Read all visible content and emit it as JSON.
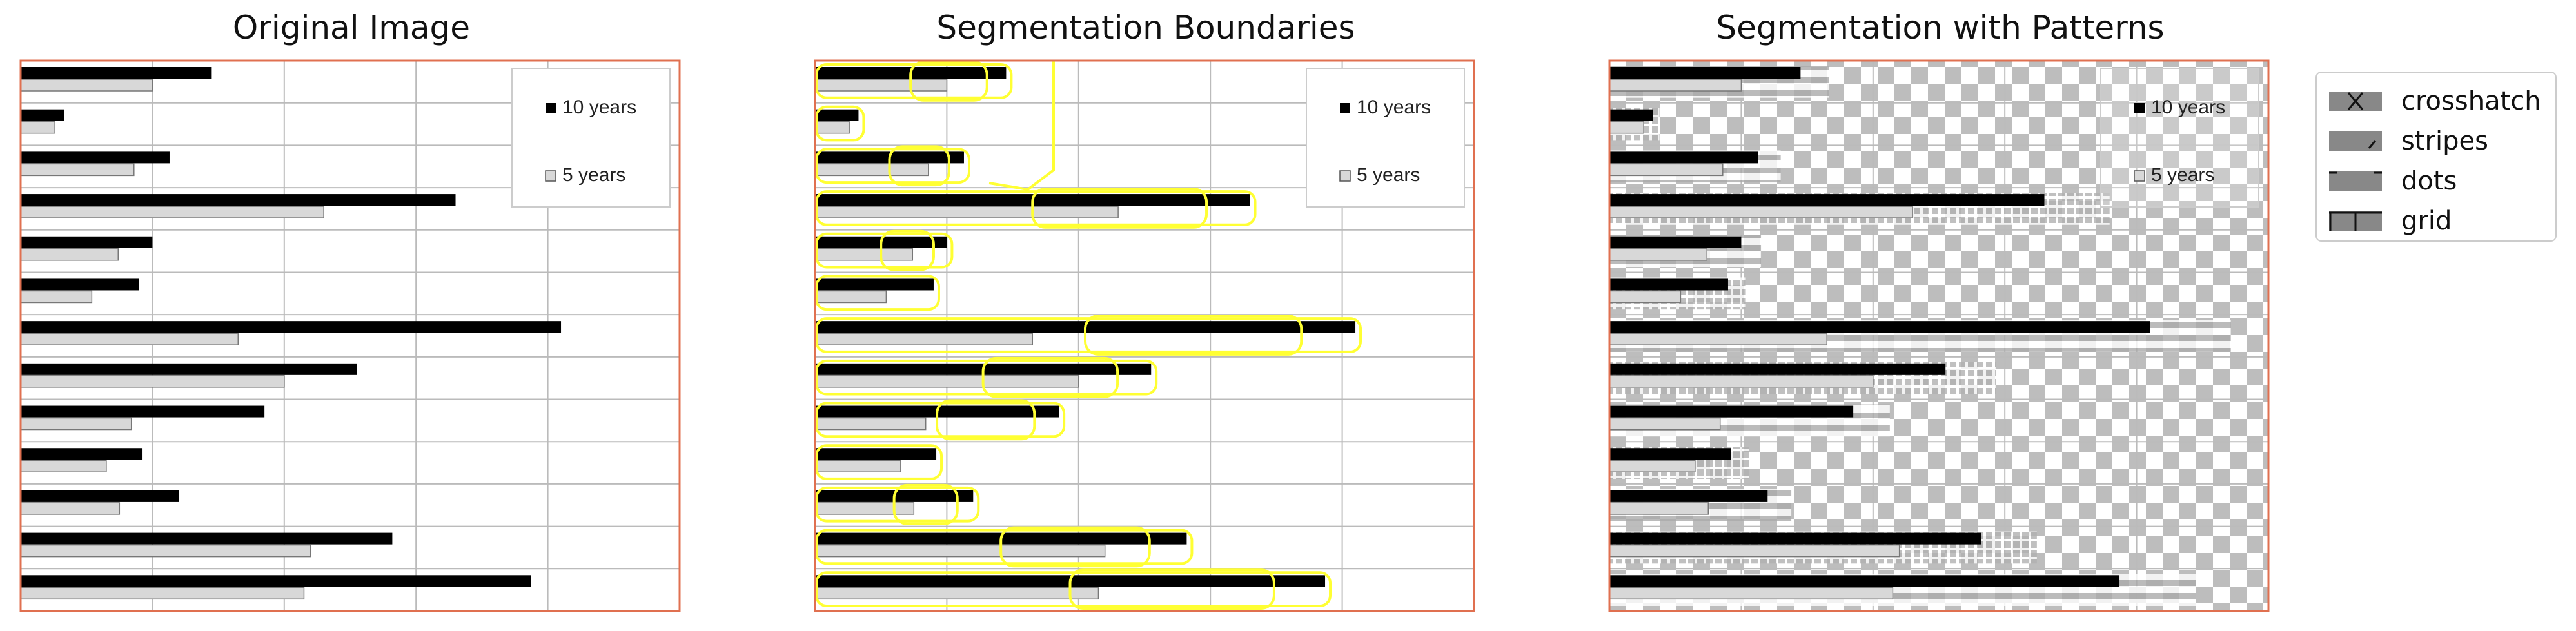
{
  "panels": [
    {
      "title": "Original Image"
    },
    {
      "title": "Segmentation Boundaries"
    },
    {
      "title": "Segmentation with Patterns"
    }
  ],
  "chart_legend": [
    "10 years",
    "5 years"
  ],
  "pattern_legend": [
    "crosshatch",
    "stripes",
    "dots",
    "grid"
  ],
  "colors": {
    "frame": "#e07050",
    "ten_years": "#000000",
    "five_years": "#d8d8d8",
    "boundary": "#ffff33",
    "grid": "#bbbbbb",
    "pattern": "#888888"
  },
  "chart_data": {
    "type": "bar",
    "orientation": "horizontal",
    "categories": [
      "",
      "",
      "",
      "",
      "",
      "",
      "",
      "",
      "",
      "",
      "",
      "",
      ""
    ],
    "series": [
      {
        "name": "10 years",
        "values": [
          1.45,
          0.33,
          1.13,
          3.3,
          1.0,
          0.9,
          4.1,
          2.55,
          1.85,
          0.92,
          1.2,
          2.82,
          3.87
        ]
      },
      {
        "name": "5 years",
        "values": [
          1.0,
          0.26,
          0.86,
          2.3,
          0.74,
          0.54,
          1.65,
          2.0,
          0.84,
          0.65,
          0.75,
          2.2,
          2.15
        ]
      }
    ],
    "xlim": [
      0,
      5
    ],
    "grid": true,
    "legend": "top-right"
  }
}
